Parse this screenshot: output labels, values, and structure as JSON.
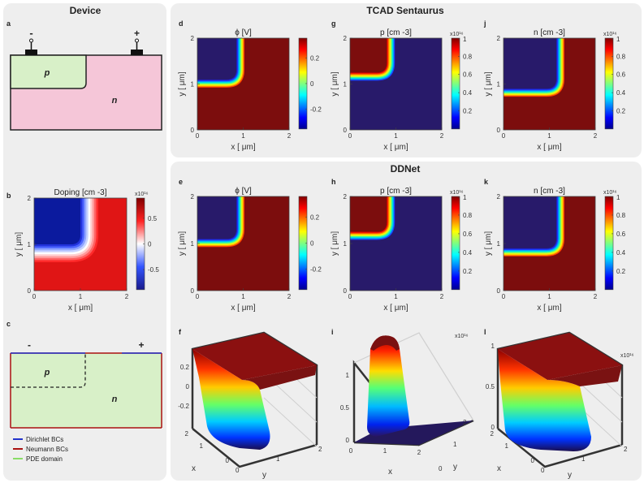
{
  "sections": {
    "device": "Device",
    "tcad": "TCAD Sentaurus",
    "ddnet": "DDNet"
  },
  "labels": {
    "a": "a",
    "b": "b",
    "c": "c",
    "d": "d",
    "e": "e",
    "f": "f",
    "g": "g",
    "h": "h",
    "i": "i",
    "j": "j",
    "k": "k",
    "l": "l"
  },
  "device": {
    "minus": "-",
    "plus": "+",
    "p_region": "p",
    "n_region": "n"
  },
  "domain": {
    "minus": "-",
    "plus": "+",
    "p_region": "p",
    "n_region": "n",
    "legend": [
      {
        "label": "Dirichlet BCs",
        "color": "#2233cc"
      },
      {
        "label": "Neumann BCs",
        "color": "#aa1111"
      },
      {
        "label": "PDE domain",
        "color": "#88dd66"
      }
    ]
  },
  "axes": {
    "x_label": "x [ μm]",
    "y_label": "y [ μm]",
    "ticks": [
      "0",
      "1",
      "2"
    ],
    "x3d": "x",
    "y3d": "y"
  },
  "chart_data": [
    {
      "panel": "b",
      "type": "heatmap",
      "title": "Doping [cm -3]",
      "colormap": "blue-white-red",
      "multiplier": "x10¹⁶",
      "colorbar_ticks": [
        "0.5",
        "0",
        "-0.5"
      ],
      "xlabel": "x [ μm]",
      "ylabel": "y [ μm]",
      "xlim": [
        0,
        2
      ],
      "ylim": [
        0,
        2
      ],
      "junction": {
        "x": 1.0,
        "y": 1.0
      }
    },
    {
      "panel": "d",
      "type": "heatmap",
      "title": "ϕ [V]",
      "colormap": "jet",
      "colorbar_ticks": [
        "0.2",
        "0",
        "-0.2"
      ],
      "xlabel": "x [ μm]",
      "ylabel": "y [ μm]",
      "xlim": [
        0,
        2
      ],
      "ylim": [
        0,
        2
      ],
      "junction": {
        "x": 0.85,
        "y": 1.1
      }
    },
    {
      "panel": "g",
      "type": "heatmap",
      "title": "p [cm -3]",
      "colormap": "jet",
      "multiplier": "x10¹⁶",
      "colorbar_ticks": [
        "1",
        "0.8",
        "0.6",
        "0.4",
        "0.2"
      ],
      "xlabel": "x [ μm]",
      "ylabel": "y [ μm]",
      "xlim": [
        0,
        2
      ],
      "ylim": [
        0,
        2
      ],
      "junction": {
        "x": 0.8,
        "y": 1.25
      }
    },
    {
      "panel": "j",
      "type": "heatmap",
      "title": "n [cm -3]",
      "colormap": "jet",
      "multiplier": "x10¹⁶",
      "colorbar_ticks": [
        "1",
        "0.8",
        "0.6",
        "0.4",
        "0.2"
      ],
      "xlabel": "x [ μm]",
      "ylabel": "y [ μm]",
      "xlim": [
        0,
        2
      ],
      "ylim": [
        0,
        2
      ],
      "junction": {
        "x": 1.15,
        "y": 0.9
      }
    },
    {
      "panel": "e",
      "type": "heatmap",
      "title": "ϕ [V]",
      "colormap": "jet",
      "colorbar_ticks": [
        "0.2",
        "0",
        "-0.2"
      ],
      "xlabel": "x [ μm]",
      "ylabel": "y [ μm]",
      "xlim": [
        0,
        2
      ],
      "ylim": [
        0,
        2
      ],
      "junction": {
        "x": 0.85,
        "y": 1.1
      }
    },
    {
      "panel": "h",
      "type": "heatmap",
      "title": "p [cm -3]",
      "colormap": "jet",
      "multiplier": "x10¹⁶",
      "colorbar_ticks": [
        "1",
        "0.8",
        "0.6",
        "0.4",
        "0.2"
      ],
      "xlabel": "x [ μm]",
      "ylabel": "y [ μm]",
      "xlim": [
        0,
        2
      ],
      "ylim": [
        0,
        2
      ],
      "junction": {
        "x": 0.8,
        "y": 1.25
      }
    },
    {
      "panel": "k",
      "type": "heatmap",
      "title": "n [cm -3]",
      "colormap": "jet",
      "multiplier": "x10¹⁶",
      "colorbar_ticks": [
        "1",
        "0.8",
        "0.6",
        "0.4",
        "0.2"
      ],
      "xlabel": "x [ μm]",
      "ylabel": "y [ μm]",
      "xlim": [
        0,
        2
      ],
      "ylim": [
        0,
        2
      ],
      "junction": {
        "x": 1.15,
        "y": 0.9
      }
    },
    {
      "panel": "f",
      "type": "surface",
      "quantity": "ϕ",
      "z_ticks": [
        "0.2",
        "0",
        "-0.2"
      ],
      "x_ticks": [
        "2",
        "1",
        "0"
      ],
      "y_ticks": [
        "0",
        "1",
        "2"
      ],
      "xlabel": "x",
      "ylabel": "y"
    },
    {
      "panel": "i",
      "type": "surface",
      "quantity": "p",
      "multiplier": "x10¹⁶",
      "z_ticks": [
        "1",
        "0.5",
        "0"
      ],
      "x_ticks": [
        "0",
        "1",
        "2"
      ],
      "y_ticks": [
        "0",
        "1",
        "2"
      ],
      "xlabel": "x",
      "ylabel": "y"
    },
    {
      "panel": "l",
      "type": "surface",
      "quantity": "n",
      "multiplier": "x10¹⁶",
      "z_ticks": [
        "1",
        "0.5",
        "0"
      ],
      "x_ticks": [
        "2",
        "1",
        "0"
      ],
      "y_ticks": [
        "0",
        "1",
        "2"
      ],
      "xlabel": "x",
      "ylabel": "y"
    }
  ]
}
